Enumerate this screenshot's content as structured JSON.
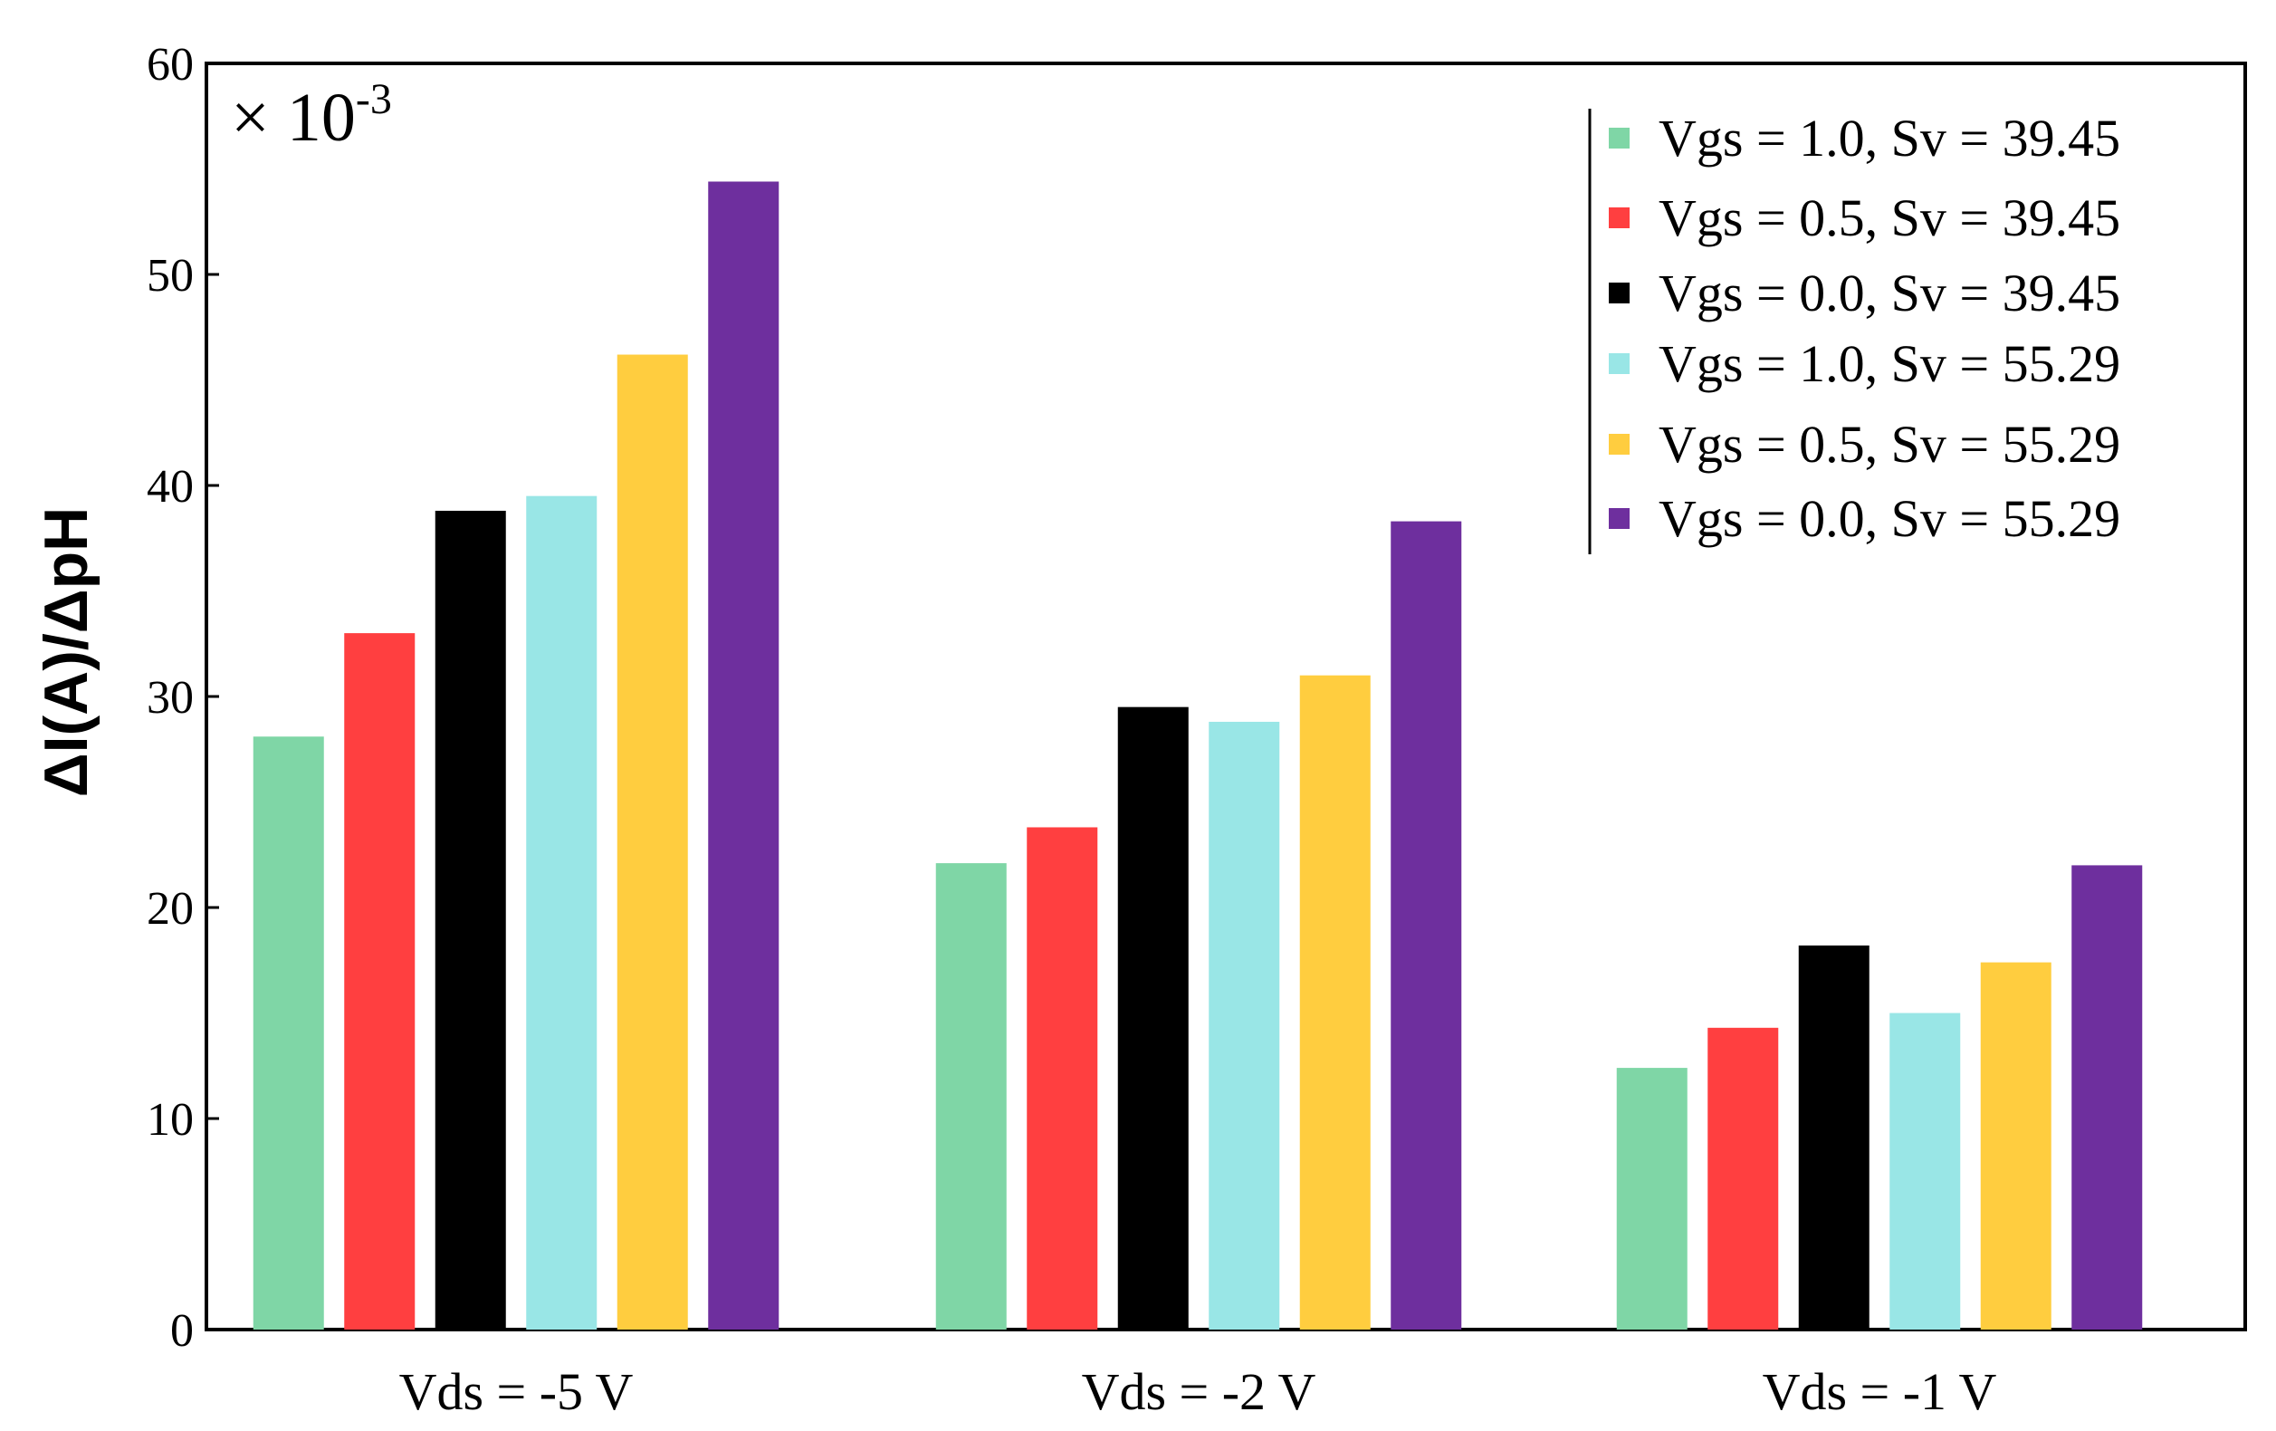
{
  "chart_data": {
    "type": "bar",
    "title": "",
    "xlabel": "",
    "ylabel": "ΔI(A)/ΔpH",
    "multiplier": {
      "base": "× 10",
      "exponent": "-3"
    },
    "ylim": [
      0,
      60
    ],
    "yticks": [
      0,
      10,
      20,
      30,
      40,
      50,
      60
    ],
    "grid": false,
    "legend_position": "top-right",
    "categories": [
      "Vds = -5 V",
      "Vds = -2 V",
      "Vds = -1 V"
    ],
    "series": [
      {
        "name": "Vgs = 1.0, Sv = 39.45",
        "color": "#7fd6a6",
        "values": [
          28.1,
          22.1,
          12.4
        ]
      },
      {
        "name": "Vgs = 0.5, Sv = 39.45",
        "color": "#ff3f40",
        "values": [
          33.0,
          23.8,
          14.3
        ]
      },
      {
        "name": "Vgs = 0.0, Sv = 39.45",
        "color": "#000000",
        "values": [
          38.8,
          29.5,
          18.2
        ]
      },
      {
        "name": "Vgs = 1.0, Sv = 55.29",
        "color": "#99e6e6",
        "values": [
          39.5,
          28.8,
          15.0
        ]
      },
      {
        "name": "Vgs = 0.5, Sv = 55.29",
        "color": "#ffcd3f",
        "values": [
          46.2,
          31.0,
          17.4
        ]
      },
      {
        "name": "Vgs = 0.0, Sv = 55.29",
        "color": "#6e2f9e",
        "values": [
          54.4,
          38.3,
          22.0
        ]
      }
    ]
  }
}
